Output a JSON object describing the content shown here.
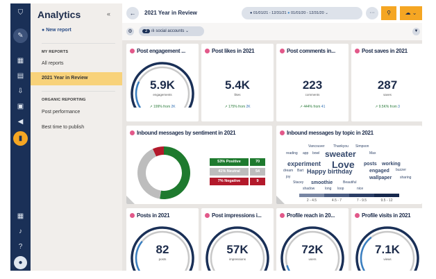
{
  "sidebar": {
    "title": "Analytics",
    "collapse": "«",
    "new_report": "New report",
    "my_reports": "MY REPORTS",
    "all_reports": "All reports",
    "active": "2021 Year in Review",
    "organic": "ORGANIC REPORTING",
    "post_performance": "Post performance",
    "best_time": "Best time to publish"
  },
  "header": {
    "title": "2021 Year in Review",
    "range1": "01/01/21 - 12/31/21",
    "range2": "01/01/20 - 12/31/20",
    "more": "···",
    "accounts_count": "2",
    "accounts_label": "social accounts"
  },
  "colors": {
    "navy": "#1a3057",
    "accent": "#f5a623",
    "positive": "#1e7a2e",
    "neutral": "#bdbdbd",
    "negative": "#b3192b"
  },
  "metrics": [
    {
      "title": "Post engagement ...",
      "value": "5.9K",
      "unit": "engagements",
      "change": "199% from",
      "prev": "2K",
      "fill": 0.25
    },
    {
      "title": "Post likes in 2021",
      "value": "5.4K",
      "unit": "likes",
      "change": "175% from",
      "prev": "2K"
    },
    {
      "title": "Post comments in...",
      "value": "223",
      "unit": "comments",
      "change": "444% from",
      "prev": "41"
    },
    {
      "title": "Post saves in 2021",
      "value": "287",
      "unit": "saves",
      "change": "9.5K% from",
      "prev": "3"
    }
  ],
  "sentiment": {
    "title": "Inbound messages by sentiment in 2021",
    "rows": [
      {
        "label": "53% Positive",
        "count": "70",
        "pct": 53
      },
      {
        "label": "41% Neutral",
        "count": "54",
        "pct": 41
      },
      {
        "label": "7% Negative",
        "count": "9",
        "pct": 7
      }
    ]
  },
  "topics": {
    "title": "Inbound messages by topic in 2021",
    "words": [
      "Vancouver",
      "Thankyou",
      "Simpson",
      "reading",
      "app",
      "bowl",
      "sweater",
      "Max",
      "experiment",
      "Love",
      "posts",
      "working",
      "dream",
      "Bart",
      "engaged",
      "buzzer",
      "joy",
      "Happy birthday",
      "wallpaper",
      "sharing",
      "Stacey",
      "smoothie",
      "Beautiful",
      "shadow",
      "long",
      "loop",
      "nice"
    ],
    "scale": [
      "2 - 4.5",
      "4.5 - 7",
      "7 - 9.5",
      "9.5 - 12"
    ]
  },
  "bottom": [
    {
      "title": "Posts in 2021",
      "value": "82",
      "unit": "posts",
      "fill": 0.3
    },
    {
      "title": "Post impressions i...",
      "value": "57K",
      "unit": "impressions",
      "fill": 0.02
    },
    {
      "title": "Profile reach in 20...",
      "value": "72K",
      "unit": "users",
      "fill": 0.08
    },
    {
      "title": "Profile visits in 2021",
      "value": "7.1K",
      "unit": "views",
      "fill": 0.35
    }
  ]
}
